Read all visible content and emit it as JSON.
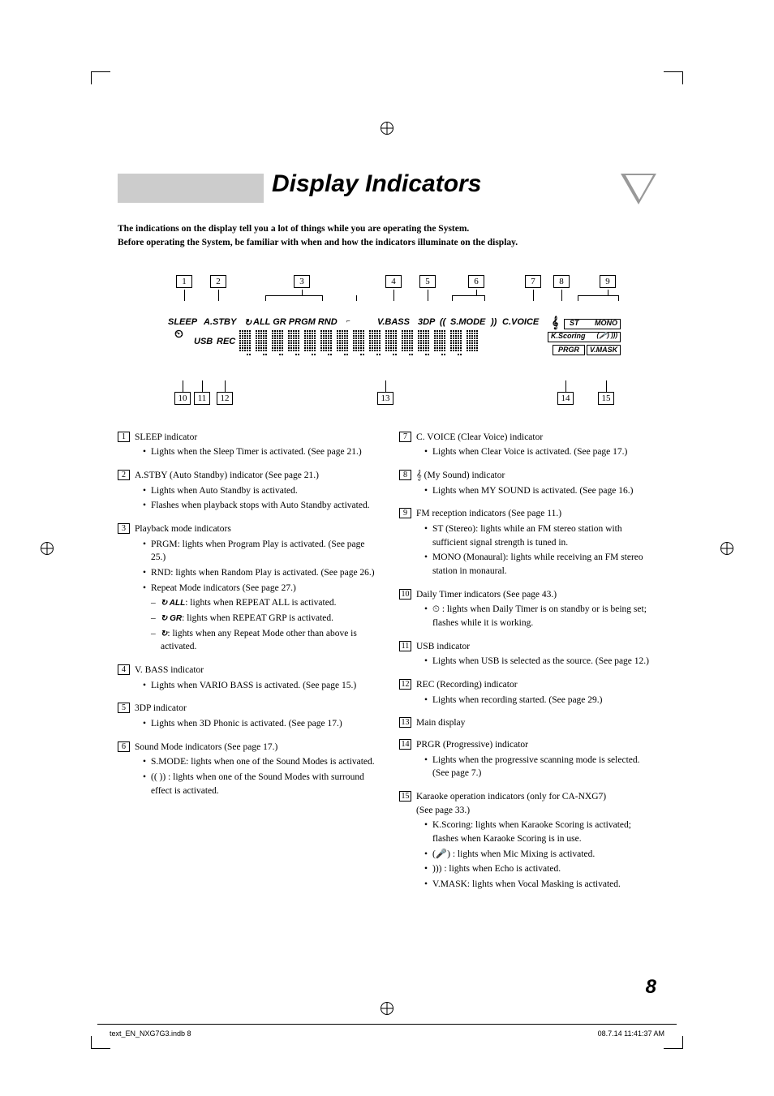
{
  "title": "Display Indicators",
  "intro_line1": "The indications on the display tell you a lot of things while you are operating the System.",
  "intro_line2": "Before operating the System, be familiar with when and how the indicators illuminate on the display.",
  "callouts_top": [
    "1",
    "2",
    "3",
    "4",
    "5",
    "6",
    "7",
    "8",
    "9"
  ],
  "callouts_bottom": [
    "10",
    "11",
    "12",
    "13",
    "14",
    "15"
  ],
  "display_labels": {
    "sleep": "SLEEP",
    "astby": "A.STBY",
    "allgr": "ALL GR PRGM RND",
    "vbass": "V.BASS",
    "threedp": "3DP",
    "smode": "S.MODE",
    "cvoice": "C.VOICE",
    "usb": "USB",
    "rec": "REC",
    "st": "ST",
    "mono": "MONO",
    "kscoring": "K.Scoring",
    "prgr": "PRGR",
    "vmask": "V.MASK"
  },
  "items_left": [
    {
      "num": "1",
      "title": "SLEEP indicator",
      "bullets": [
        "Lights when the Sleep Timer is activated. (See page 21.)"
      ]
    },
    {
      "num": "2",
      "title": "A.STBY (Auto Standby) indicator (See page 21.)",
      "bullets": [
        "Lights when Auto Standby is activated.",
        "Flashes when playback stops with Auto Standby activated."
      ]
    },
    {
      "num": "3",
      "title": "Playback mode indicators",
      "bullets": [
        "PRGM: lights when Program Play is activated. (See page 25.)",
        "RND: lights when Random Play is activated. (See page 26.)",
        "Repeat Mode indicators (See page 27.)"
      ],
      "subs": [
        "↻ ALL : lights when REPEAT ALL is activated.",
        "↻ GR : lights when REPEAT GRP is activated.",
        "↻ : lights when any Repeat Mode other than above is activated."
      ]
    },
    {
      "num": "4",
      "title": "V. BASS indicator",
      "bullets": [
        "Lights when VARIO BASS is activated. (See page 15.)"
      ]
    },
    {
      "num": "5",
      "title": "3DP indicator",
      "bullets": [
        "Lights when 3D Phonic is activated. (See page 17.)"
      ]
    },
    {
      "num": "6",
      "title": "Sound Mode indicators (See page 17.)",
      "bullets": [
        "S.MODE: lights when one of the Sound Modes is activated.",
        "((  )) : lights when one of the Sound Modes with surround effect is activated."
      ]
    }
  ],
  "items_right": [
    {
      "num": "7",
      "title": "C. VOICE (Clear Voice) indicator",
      "bullets": [
        "Lights when Clear Voice is activated. (See page 17.)"
      ]
    },
    {
      "num": "8",
      "title": "𝄞 (My Sound) indicator",
      "bullets": [
        "Lights when MY SOUND is activated. (See page 16.)"
      ]
    },
    {
      "num": "9",
      "title": "FM reception indicators (See page 11.)",
      "bullets": [
        "ST (Stereo): lights while an FM stereo station with sufficient signal strength is tuned in.",
        "MONO (Monaural): lights while receiving an FM stereo station in monaural."
      ]
    },
    {
      "num": "10",
      "title": "Daily Timer indicators (See page 43.)",
      "bullets": [
        "⏲ : lights when Daily Timer is on standby or is being set; flashes while it is working."
      ]
    },
    {
      "num": "11",
      "title": "USB indicator",
      "bullets": [
        "Lights when USB is selected as the source. (See page 12.)"
      ]
    },
    {
      "num": "12",
      "title": "REC (Recording) indicator",
      "bullets": [
        "Lights when recording started. (See page 29.)"
      ]
    },
    {
      "num": "13",
      "title": "Main display",
      "bullets": []
    },
    {
      "num": "14",
      "title": "PRGR (Progressive) indicator",
      "bullets": [
        "Lights when the progressive scanning mode is selected. (See page 7.)"
      ]
    },
    {
      "num": "15",
      "title": "Karaoke operation indicators (only for CA-NXG7)",
      "pre": "(See page 33.)",
      "bullets": [
        "K.Scoring: lights when Karaoke Scoring is activated; flashes when Karaoke Scoring is in use.",
        "(🎤) : lights when Mic Mixing is activated.",
        " ))) : lights when Echo is activated.",
        "V.MASK: lights when Vocal Masking is activated."
      ]
    }
  ],
  "page_number": "8",
  "footer_left": "text_EN_NXG7G3.indb   8",
  "footer_right": "08.7.14   11:41:37 AM"
}
